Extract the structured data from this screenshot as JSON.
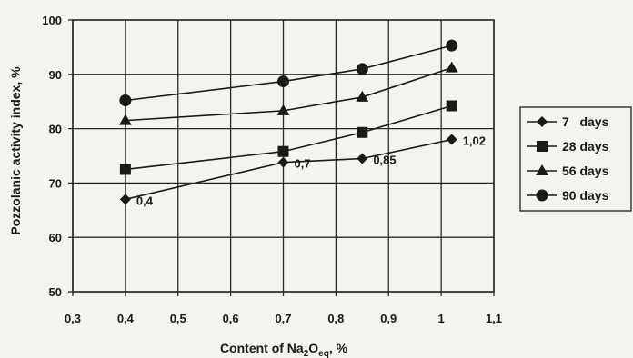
{
  "chart_data": {
    "type": "line",
    "title": "",
    "xlabel_main": "Content of Na",
    "xlabel_sub2": "2",
    "xlabel_o": "O",
    "xlabel_sub_eq": "eq",
    "xlabel_tail": ", %",
    "ylabel": "Pozzolanic activity index, %",
    "xlim": [
      0.3,
      1.1
    ],
    "ylim": [
      50,
      100
    ],
    "x_ticks": [
      0.3,
      0.4,
      0.5,
      0.6,
      0.7,
      0.8,
      0.9,
      1.0,
      1.1
    ],
    "x_tick_labels": [
      "0,3",
      "0,4",
      "0,5",
      "0,6",
      "0,7",
      "0,8",
      "0,9",
      "1",
      "1,1"
    ],
    "y_ticks": [
      50,
      60,
      70,
      80,
      90,
      100
    ],
    "y_tick_labels": [
      "50",
      "60",
      "70",
      "80",
      "90",
      "100"
    ],
    "grid": true,
    "legend_position": "right",
    "x": [
      0.4,
      0.7,
      0.85,
      1.02
    ],
    "series": [
      {
        "name": "7   days",
        "marker": "diamond",
        "values": [
          67,
          73.8,
          74.5,
          78
        ]
      },
      {
        "name": "28 days",
        "marker": "square",
        "values": [
          72.5,
          75.8,
          79.3,
          84.2
        ]
      },
      {
        "name": "56 days",
        "marker": "triangle",
        "values": [
          81.5,
          83.3,
          85.8,
          91.2
        ]
      },
      {
        "name": "90 days",
        "marker": "circle",
        "values": [
          85.2,
          88.7,
          91,
          95.3
        ]
      }
    ],
    "point_labels": [
      {
        "x": 0.4,
        "y": 67,
        "text": "0,4"
      },
      {
        "x": 0.7,
        "y": 73.8,
        "text": "0,7"
      },
      {
        "x": 0.85,
        "y": 74.5,
        "text": "0,85"
      },
      {
        "x": 1.02,
        "y": 78,
        "text": "1,02"
      }
    ],
    "colors": {
      "line": "#1a1a1a",
      "grid": "#2a2a2a",
      "background": "#f4f3ee"
    }
  }
}
